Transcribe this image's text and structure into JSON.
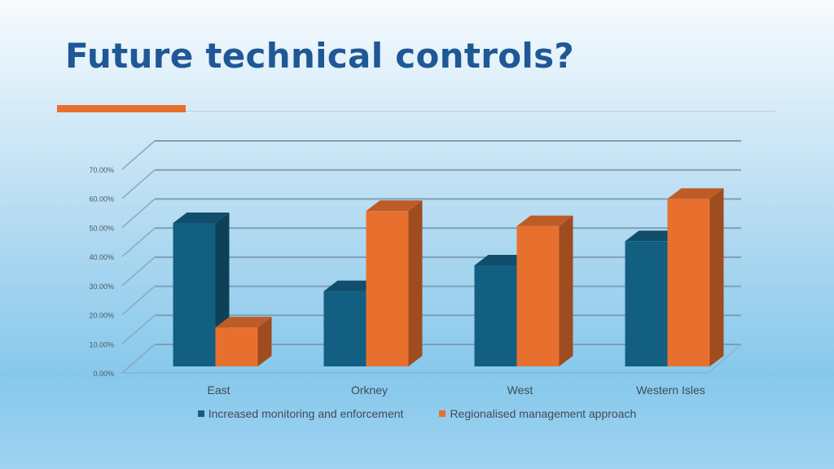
{
  "slide": {
    "title": "Future technical controls?"
  },
  "colors": {
    "title": "#1f5896",
    "accent": "#e8702f",
    "series1": "#135f82",
    "series2": "#e8702f"
  },
  "chart_data": {
    "type": "bar",
    "style": "3d-clustered-column",
    "categories": [
      "East",
      "Orkney",
      "West",
      "Western Isles"
    ],
    "series": [
      {
        "name": "Increased monitoring and enforcement",
        "values": [
          0.56,
          0.335,
          0.42,
          0.5
        ]
      },
      {
        "name": "Regionalised management approach",
        "values": [
          0.215,
          0.6,
          0.55,
          0.64
        ]
      }
    ],
    "yticks": [
      "0.00%",
      "10.00%",
      "20.00%",
      "30.00%",
      "40.00%",
      "50.00%",
      "60.00%",
      "70.00%"
    ],
    "ylim": [
      0,
      0.7
    ],
    "grid": true,
    "legend_position": "bottom",
    "xlabel": "",
    "ylabel": ""
  }
}
